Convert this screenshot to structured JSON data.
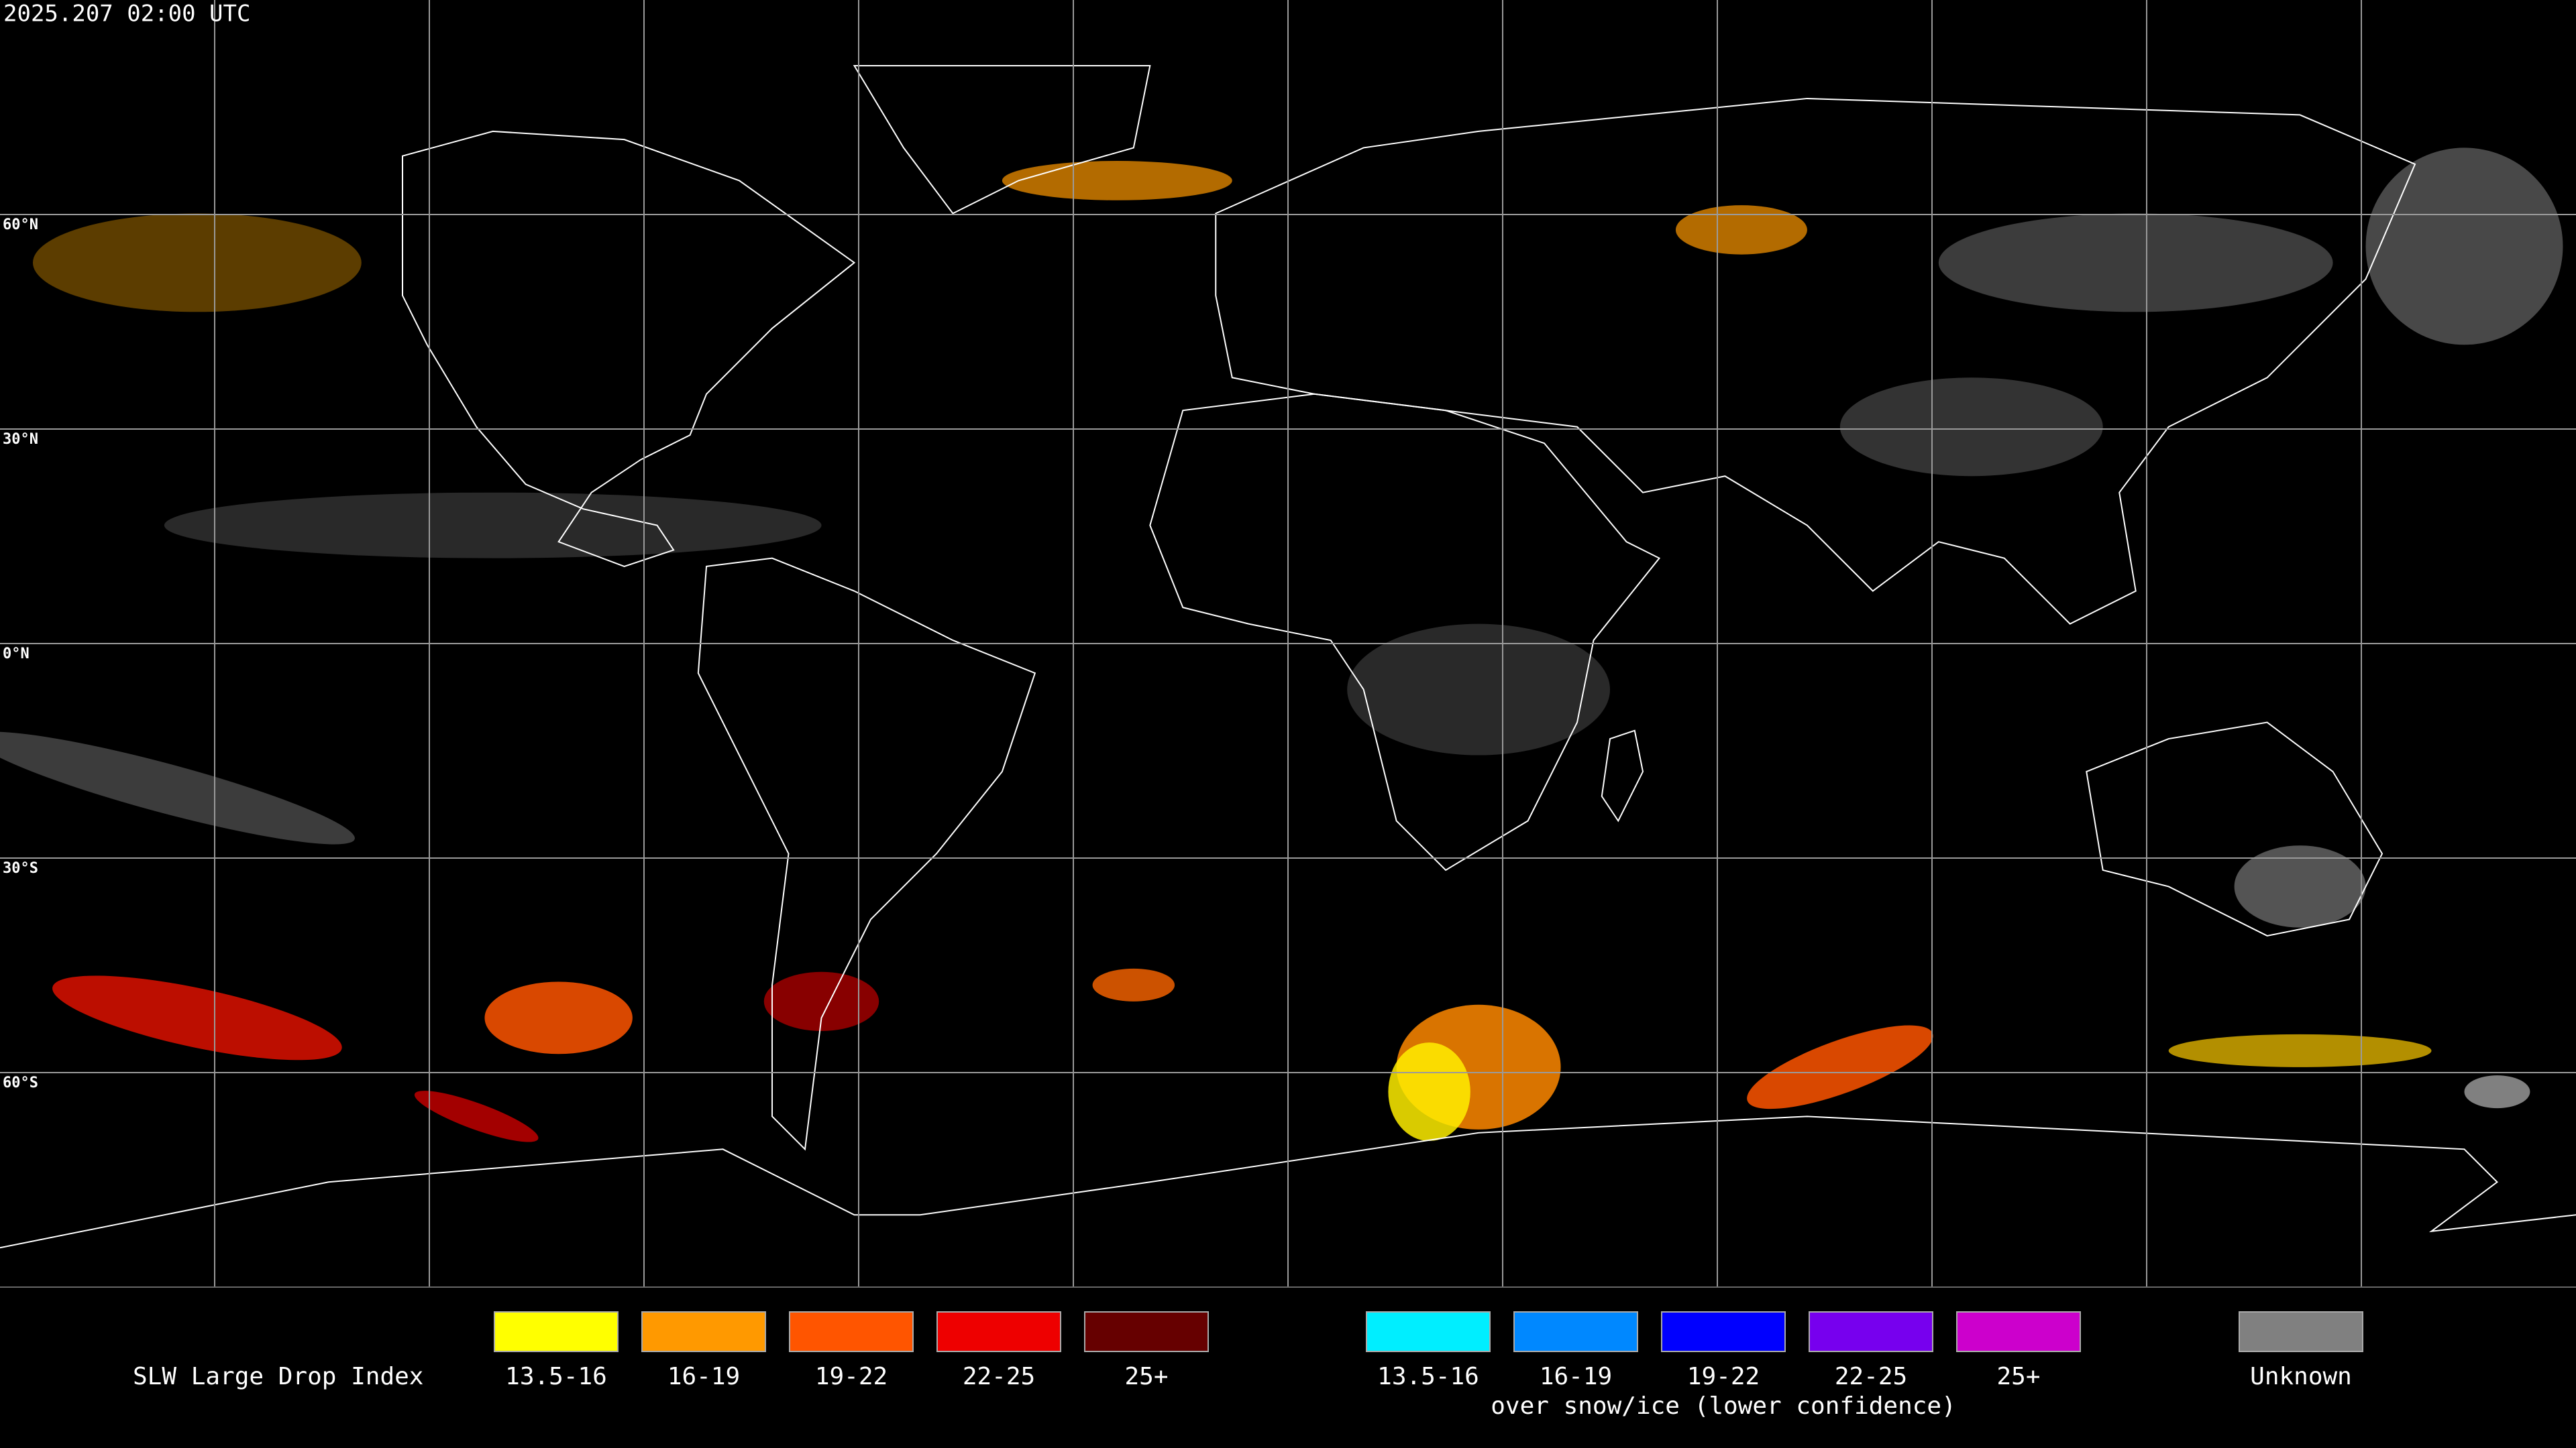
{
  "header": {
    "timestamp": "2025.207 02:00 UTC"
  },
  "map": {
    "latitude_labels": [
      "60°N",
      "30°N",
      "0°N",
      "30°S",
      "60°S"
    ]
  },
  "legend": {
    "title": "SLW Large Drop Index",
    "items": [
      {
        "label": "13.5-16",
        "color": "#ffff00"
      },
      {
        "label": "16-19",
        "color": "#ff9900"
      },
      {
        "label": "19-22",
        "color": "#ff5500"
      },
      {
        "label": "22-25",
        "color": "#ee0000"
      },
      {
        "label": "25+",
        "color": "#660000"
      }
    ],
    "snow_items": [
      {
        "label": "13.5-16",
        "color": "#00eeff"
      },
      {
        "label": "16-19",
        "color": "#0088ff"
      },
      {
        "label": "19-22",
        "color": "#0000ff"
      },
      {
        "label": "22-25",
        "color": "#7700ee"
      },
      {
        "label": "25+",
        "color": "#cc00cc"
      }
    ],
    "snow_caption": "over snow/ice (lower confidence)",
    "unknown": {
      "label": "Unknown",
      "color": "#808080"
    }
  }
}
